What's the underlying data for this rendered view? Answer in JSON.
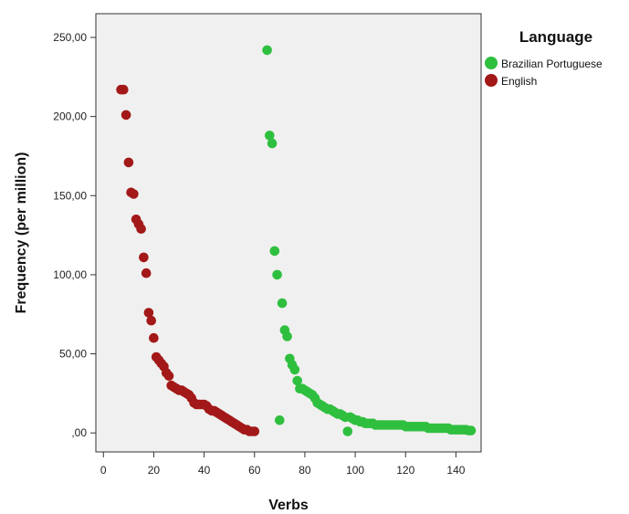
{
  "chart_data": {
    "type": "scatter",
    "xlabel": "Verbs",
    "ylabel": "Frequency (per million)",
    "xlim": [
      -3,
      150
    ],
    "ylim": [
      -12,
      265
    ],
    "x_ticks": [
      0,
      20,
      40,
      60,
      80,
      100,
      120,
      140
    ],
    "y_ticks": [
      0,
      50,
      100,
      150,
      200,
      250
    ],
    "y_tick_labels": [
      ",00",
      "50,00",
      "100,00",
      "150,00",
      "200,00",
      "250,00"
    ],
    "grid": false,
    "legend": {
      "title": "Language",
      "position": "right"
    },
    "series": [
      {
        "name": "Brazilian Portuguese",
        "color": "#2fbf3f",
        "points": [
          [
            65,
            242
          ],
          [
            66,
            188
          ],
          [
            67,
            183
          ],
          [
            68,
            115
          ],
          [
            69,
            100
          ],
          [
            70,
            8
          ],
          [
            71,
            82
          ],
          [
            72,
            65
          ],
          [
            73,
            61
          ],
          [
            74,
            47
          ],
          [
            75,
            43
          ],
          [
            76,
            40
          ],
          [
            77,
            33
          ],
          [
            78,
            28
          ],
          [
            79,
            28
          ],
          [
            80,
            27
          ],
          [
            81,
            26
          ],
          [
            82,
            25
          ],
          [
            83,
            24
          ],
          [
            84,
            22
          ],
          [
            85,
            19
          ],
          [
            86,
            18
          ],
          [
            87,
            17
          ],
          [
            88,
            16
          ],
          [
            89,
            15
          ],
          [
            90,
            15
          ],
          [
            91,
            14
          ],
          [
            92,
            13
          ],
          [
            93,
            12
          ],
          [
            94,
            12
          ],
          [
            95,
            11
          ],
          [
            96,
            10
          ],
          [
            97,
            1
          ],
          [
            98,
            10
          ],
          [
            99,
            9
          ],
          [
            100,
            8
          ],
          [
            101,
            8
          ],
          [
            102,
            7
          ],
          [
            103,
            7
          ],
          [
            104,
            6
          ],
          [
            105,
            6
          ],
          [
            106,
            6
          ],
          [
            107,
            6
          ],
          [
            108,
            5
          ],
          [
            109,
            5
          ],
          [
            110,
            5
          ],
          [
            111,
            5
          ],
          [
            112,
            5
          ],
          [
            113,
            5
          ],
          [
            114,
            5
          ],
          [
            115,
            5
          ],
          [
            116,
            5
          ],
          [
            117,
            5
          ],
          [
            118,
            5
          ],
          [
            119,
            5
          ],
          [
            120,
            4
          ],
          [
            121,
            4
          ],
          [
            122,
            4
          ],
          [
            123,
            4
          ],
          [
            124,
            4
          ],
          [
            125,
            4
          ],
          [
            126,
            4
          ],
          [
            127,
            4
          ],
          [
            128,
            4
          ],
          [
            129,
            3
          ],
          [
            130,
            3
          ],
          [
            131,
            3
          ],
          [
            132,
            3
          ],
          [
            133,
            3
          ],
          [
            134,
            3
          ],
          [
            135,
            3
          ],
          [
            136,
            3
          ],
          [
            137,
            3
          ],
          [
            138,
            2
          ],
          [
            139,
            2
          ],
          [
            140,
            2
          ],
          [
            141,
            2
          ],
          [
            142,
            2
          ],
          [
            143,
            2
          ],
          [
            144,
            2
          ],
          [
            145,
            1.5
          ],
          [
            146,
            1.5
          ]
        ]
      },
      {
        "name": "English",
        "color": "#a31818",
        "points": [
          [
            7,
            217
          ],
          [
            8,
            217
          ],
          [
            9,
            201
          ],
          [
            10,
            171
          ],
          [
            11,
            152
          ],
          [
            12,
            151
          ],
          [
            13,
            135
          ],
          [
            14,
            132
          ],
          [
            15,
            129
          ],
          [
            16,
            111
          ],
          [
            17,
            101
          ],
          [
            18,
            76
          ],
          [
            19,
            71
          ],
          [
            20,
            60
          ],
          [
            21,
            48
          ],
          [
            22,
            46
          ],
          [
            23,
            44
          ],
          [
            24,
            42
          ],
          [
            25,
            38
          ],
          [
            26,
            36
          ],
          [
            27,
            30
          ],
          [
            28,
            29
          ],
          [
            29,
            28
          ],
          [
            30,
            27
          ],
          [
            31,
            27
          ],
          [
            32,
            26
          ],
          [
            33,
            25
          ],
          [
            34,
            24
          ],
          [
            35,
            22
          ],
          [
            36,
            19
          ],
          [
            37,
            18
          ],
          [
            38,
            18
          ],
          [
            39,
            18
          ],
          [
            40,
            18
          ],
          [
            41,
            17
          ],
          [
            42,
            15
          ],
          [
            43,
            14
          ],
          [
            44,
            14
          ],
          [
            45,
            13
          ],
          [
            46,
            12
          ],
          [
            47,
            11
          ],
          [
            48,
            10
          ],
          [
            49,
            9
          ],
          [
            50,
            8
          ],
          [
            51,
            7
          ],
          [
            52,
            6
          ],
          [
            53,
            5
          ],
          [
            54,
            4
          ],
          [
            55,
            3
          ],
          [
            56,
            2
          ],
          [
            57,
            2
          ],
          [
            58,
            1
          ],
          [
            59,
            1
          ],
          [
            60,
            1
          ]
        ]
      }
    ]
  }
}
